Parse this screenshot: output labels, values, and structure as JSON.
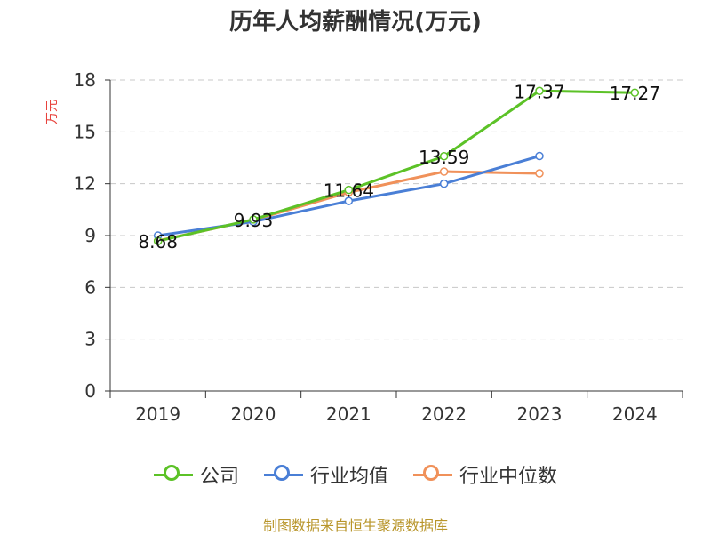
{
  "chart_data": {
    "type": "line",
    "title": "历年人均薪酬情况(万元)",
    "xlabel": "",
    "ylabel": "万元",
    "categories": [
      "2019",
      "2020",
      "2021",
      "2022",
      "2023",
      "2024"
    ],
    "ylim": [
      0,
      18
    ],
    "yticks": [
      0,
      3,
      6,
      9,
      12,
      15,
      18
    ],
    "grid": true,
    "legend_position": "bottom",
    "series": [
      {
        "name": "公司",
        "color": "#5cc227",
        "values": [
          8.68,
          9.93,
          11.64,
          13.59,
          17.37,
          17.27
        ],
        "labels": [
          "8.68",
          "9.93",
          "11.64",
          "13.59",
          "17.37",
          "17.27"
        ]
      },
      {
        "name": "行业均值",
        "color": "#4a7fd6",
        "values": [
          9.0,
          9.8,
          11.0,
          12.0,
          13.6,
          null
        ],
        "labels": []
      },
      {
        "name": "行业中位数",
        "color": "#f0915a",
        "values": [
          8.7,
          9.9,
          11.5,
          12.7,
          12.6,
          null
        ],
        "labels": []
      }
    ]
  },
  "source": "制图数据来自恒生聚源数据库"
}
